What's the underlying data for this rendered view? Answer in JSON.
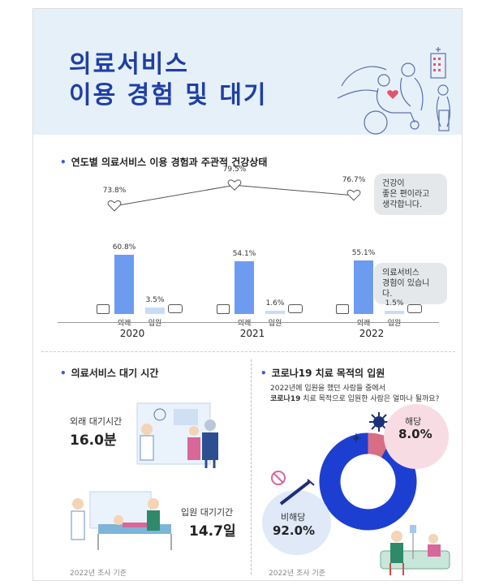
{
  "header": {
    "title_line1": "의료서비스",
    "title_line2": "이용 경험 및 대기"
  },
  "section1": {
    "title": "연도별 의료서비스 이용 경험과 주관적 건강상태",
    "bubble_health": "건강이\n좋은 편이라고\n생각합니다.",
    "bubble_service": "의료서비스\n경험이 있습니다.",
    "outpatient_label": "외래",
    "inpatient_label": "입원"
  },
  "section2": {
    "title": "의료서비스 대기 시간",
    "outpatient_wait_label": "외래 대기시간",
    "outpatient_wait_value": "16.0분",
    "inpatient_wait_label": "입원 대기기간",
    "inpatient_wait_value": "14.7일",
    "note": "2022년 조사 기준"
  },
  "section3": {
    "title": "코로나19 치료 목적의 입원",
    "question_line1": "2022년에 입원을 했던 사람들 중에서",
    "question_bold": "코로나19",
    "question_line2_rest": " 치료 목적으로 입원한 사람은 얼마나 될까요?",
    "yes_label": "해당",
    "yes_value": "8.0%",
    "no_label": "비해당",
    "no_value": "92.0%",
    "note": "2022년 조사 기준"
  },
  "colors": {
    "title_blue": "#1f3fa6",
    "bar_outpatient": "#6d9bf0",
    "bar_inpatient": "#c9dcf7",
    "donut_blue": "#1d3fd1",
    "donut_pink": "#d86e84"
  },
  "chart_data": [
    {
      "type": "bar",
      "categories": [
        "2020",
        "2021",
        "2022"
      ],
      "series": [
        {
          "name": "외래",
          "values": [
            60.8,
            54.1,
            55.1
          ],
          "labels": [
            "60.8%",
            "54.1%",
            "55.1%"
          ]
        },
        {
          "name": "입원",
          "values": [
            3.5,
            1.6,
            1.5
          ],
          "labels": [
            "3.5%",
            "1.6%",
            "1.5%"
          ]
        }
      ],
      "line_series": {
        "values": [
          73.8,
          79.5,
          76.7
        ],
        "labels": [
          "73.8%",
          "79.5%",
          "76.7%"
        ]
      }
    },
    {
      "type": "pie",
      "slices": [
        {
          "name": "해당",
          "value": 8.0
        },
        {
          "name": "비해당",
          "value": 92.0
        }
      ]
    }
  ]
}
